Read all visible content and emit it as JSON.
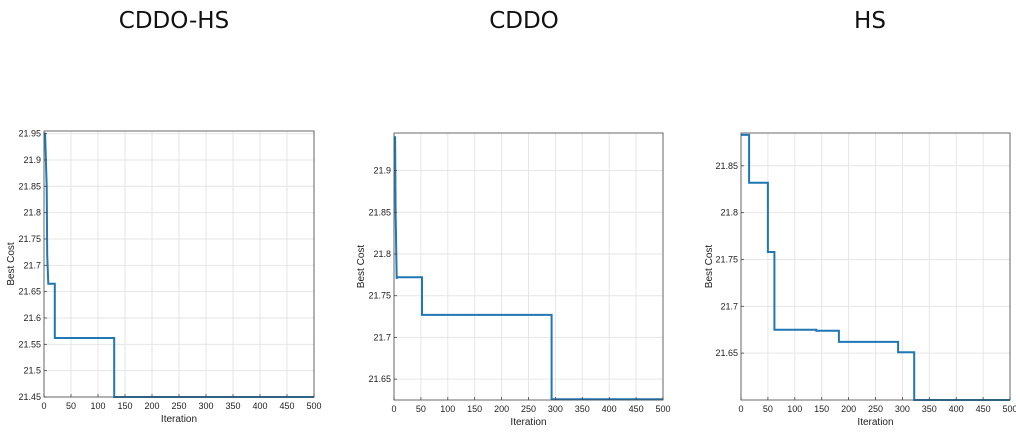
{
  "colors": {
    "line": "#1f77b4",
    "grid": "#e6e6e6",
    "axis": "#444444"
  },
  "chart_data": [
    {
      "type": "line",
      "title": "CDDO-HS",
      "xlabel": "Iteration",
      "ylabel": "Best Cost",
      "xlim": [
        0,
        500
      ],
      "ylim": [
        21.45,
        21.955
      ],
      "xticks": [
        0,
        50,
        100,
        150,
        200,
        250,
        300,
        350,
        400,
        450,
        500
      ],
      "yticks": [
        21.45,
        21.5,
        21.55,
        21.6,
        21.65,
        21.7,
        21.75,
        21.8,
        21.85,
        21.9,
        21.95
      ],
      "ytick_labels": [
        "21.45",
        "21.5",
        "21.55",
        "21.6",
        "21.65",
        "21.7",
        "21.75",
        "21.8",
        "21.85",
        "21.9",
        "21.95"
      ],
      "grid": true,
      "series": [
        {
          "x": [
            0,
            2,
            4,
            5,
            6,
            8,
            12,
            20,
            20,
            130,
            130,
            500
          ],
          "y": [
            21.95,
            21.95,
            21.88,
            21.85,
            21.72,
            21.665,
            21.665,
            21.665,
            21.562,
            21.562,
            21.45,
            21.45
          ]
        }
      ]
    },
    {
      "type": "line",
      "title": "CDDO",
      "xlabel": "Iteration",
      "ylabel": "Best Cost",
      "xlim": [
        0,
        500
      ],
      "ylim": [
        21.625,
        21.945
      ],
      "xticks": [
        0,
        50,
        100,
        150,
        200,
        250,
        300,
        350,
        400,
        450,
        500
      ],
      "yticks": [
        21.65,
        21.7,
        21.75,
        21.8,
        21.85,
        21.9
      ],
      "ytick_labels": [
        "21.65",
        "21.7",
        "21.75",
        "21.8",
        "21.85",
        "21.9"
      ],
      "grid": true,
      "series": [
        {
          "x": [
            0,
            2,
            3,
            5,
            5,
            52,
            52,
            293,
            293,
            500
          ],
          "y": [
            21.94,
            21.94,
            21.85,
            21.77,
            21.772,
            21.772,
            21.727,
            21.727,
            21.626,
            21.626
          ]
        }
      ]
    },
    {
      "type": "line",
      "title": "HS",
      "xlabel": "Iteration",
      "ylabel": "Best Cost",
      "xlim": [
        0,
        500
      ],
      "ylim": [
        21.6,
        21.885
      ],
      "xticks": [
        0,
        50,
        100,
        150,
        200,
        250,
        300,
        350,
        400,
        450,
        500
      ],
      "yticks": [
        21.65,
        21.7,
        21.75,
        21.8,
        21.85
      ],
      "ytick_labels": [
        "21.65",
        "21.7",
        "21.75",
        "21.8",
        "21.85"
      ],
      "grid": true,
      "series": [
        {
          "x": [
            0,
            15,
            15,
            50,
            50,
            62,
            62,
            140,
            140,
            182,
            182,
            292,
            292,
            322,
            322,
            500
          ],
          "y": [
            21.883,
            21.883,
            21.832,
            21.832,
            21.758,
            21.758,
            21.675,
            21.675,
            21.674,
            21.674,
            21.662,
            21.662,
            21.651,
            21.651,
            21.6,
            21.6
          ]
        }
      ]
    }
  ]
}
